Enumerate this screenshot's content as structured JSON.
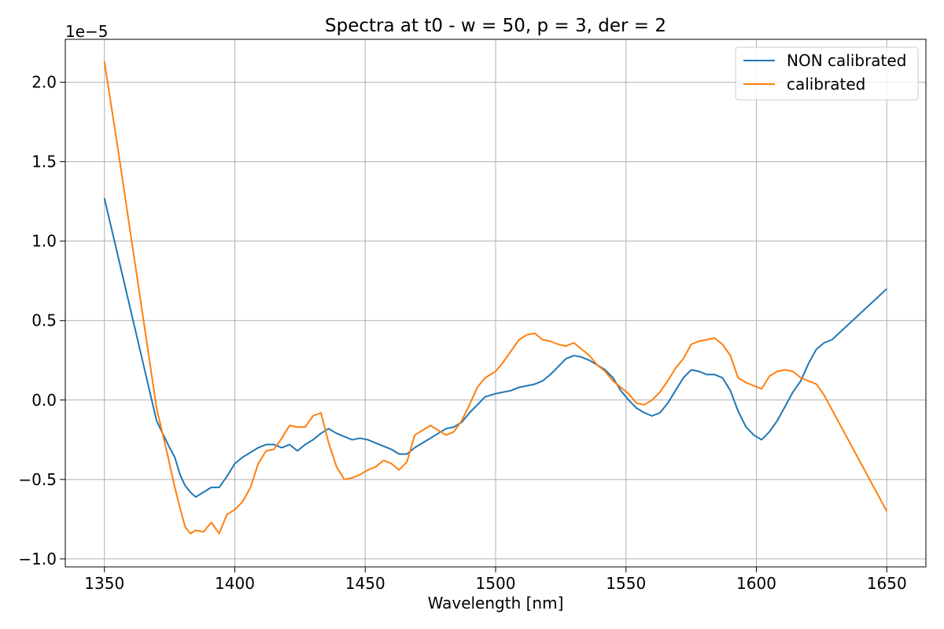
{
  "chart_data": {
    "type": "line",
    "title": "Spectra at t0 - w = 50, p = 3, der = 2",
    "xlabel": "Wavelength [nm]",
    "ylabel": "",
    "y_offset_label": "1e−5",
    "xlim": [
      1335,
      1665
    ],
    "ylim": [
      -1.05,
      2.27
    ],
    "x_ticks": [
      1350,
      1400,
      1450,
      1500,
      1550,
      1600,
      1650
    ],
    "x_tick_labels": [
      "1350",
      "1400",
      "1450",
      "1500",
      "1550",
      "1600",
      "1650"
    ],
    "y_ticks": [
      -1.0,
      -0.5,
      0.0,
      0.5,
      1.0,
      1.5,
      2.0
    ],
    "y_tick_labels": [
      "−1.0",
      "−0.5",
      "0.0",
      "0.5",
      "1.0",
      "1.5",
      "2.0"
    ],
    "grid": true,
    "legend_position": "top-right",
    "series": [
      {
        "name": "NON calibrated",
        "color": "#1f77b4",
        "points": [
          [
            1350,
            1.27
          ],
          [
            1355,
            0.92
          ],
          [
            1360,
            0.57
          ],
          [
            1365,
            0.22
          ],
          [
            1370,
            -0.13
          ],
          [
            1375,
            -0.3
          ],
          [
            1377,
            -0.36
          ],
          [
            1379,
            -0.47
          ],
          [
            1381,
            -0.54
          ],
          [
            1383,
            -0.58
          ],
          [
            1385,
            -0.61
          ],
          [
            1388,
            -0.58
          ],
          [
            1391,
            -0.55
          ],
          [
            1394,
            -0.55
          ],
          [
            1397,
            -0.48
          ],
          [
            1400,
            -0.4
          ],
          [
            1403,
            -0.36
          ],
          [
            1406,
            -0.33
          ],
          [
            1409,
            -0.3
          ],
          [
            1412,
            -0.28
          ],
          [
            1415,
            -0.28
          ],
          [
            1418,
            -0.3
          ],
          [
            1421,
            -0.28
          ],
          [
            1424,
            -0.32
          ],
          [
            1427,
            -0.28
          ],
          [
            1430,
            -0.25
          ],
          [
            1433,
            -0.21
          ],
          [
            1436,
            -0.18
          ],
          [
            1439,
            -0.21
          ],
          [
            1442,
            -0.23
          ],
          [
            1445,
            -0.25
          ],
          [
            1448,
            -0.24
          ],
          [
            1451,
            -0.25
          ],
          [
            1454,
            -0.27
          ],
          [
            1457,
            -0.29
          ],
          [
            1460,
            -0.31
          ],
          [
            1463,
            -0.34
          ],
          [
            1466,
            -0.34
          ],
          [
            1469,
            -0.3
          ],
          [
            1472,
            -0.27
          ],
          [
            1475,
            -0.24
          ],
          [
            1478,
            -0.21
          ],
          [
            1481,
            -0.18
          ],
          [
            1484,
            -0.17
          ],
          [
            1487,
            -0.14
          ],
          [
            1490,
            -0.08
          ],
          [
            1493,
            -0.03
          ],
          [
            1496,
            0.02
          ],
          [
            1500,
            0.04
          ],
          [
            1503,
            0.05
          ],
          [
            1506,
            0.06
          ],
          [
            1509,
            0.08
          ],
          [
            1512,
            0.09
          ],
          [
            1515,
            0.1
          ],
          [
            1518,
            0.12
          ],
          [
            1521,
            0.16
          ],
          [
            1524,
            0.21
          ],
          [
            1527,
            0.26
          ],
          [
            1530,
            0.28
          ],
          [
            1533,
            0.27
          ],
          [
            1536,
            0.25
          ],
          [
            1539,
            0.22
          ],
          [
            1542,
            0.19
          ],
          [
            1545,
            0.14
          ],
          [
            1548,
            0.06
          ],
          [
            1551,
            0.0
          ],
          [
            1554,
            -0.05
          ],
          [
            1557,
            -0.08
          ],
          [
            1560,
            -0.1
          ],
          [
            1563,
            -0.08
          ],
          [
            1566,
            -0.02
          ],
          [
            1569,
            0.06
          ],
          [
            1572,
            0.14
          ],
          [
            1575,
            0.19
          ],
          [
            1578,
            0.18
          ],
          [
            1581,
            0.16
          ],
          [
            1584,
            0.16
          ],
          [
            1587,
            0.14
          ],
          [
            1590,
            0.06
          ],
          [
            1593,
            -0.07
          ],
          [
            1596,
            -0.17
          ],
          [
            1599,
            -0.22
          ],
          [
            1602,
            -0.25
          ],
          [
            1605,
            -0.2
          ],
          [
            1608,
            -0.13
          ],
          [
            1611,
            -0.04
          ],
          [
            1614,
            0.05
          ],
          [
            1617,
            0.12
          ],
          [
            1620,
            0.23
          ],
          [
            1623,
            0.32
          ],
          [
            1626,
            0.36
          ],
          [
            1629,
            0.38
          ],
          [
            1650,
            0.7
          ]
        ]
      },
      {
        "name": "calibrated",
        "color": "#ff7f0e",
        "points": [
          [
            1350,
            2.13
          ],
          [
            1355,
            1.6
          ],
          [
            1360,
            1.05
          ],
          [
            1365,
            0.5
          ],
          [
            1370,
            -0.05
          ],
          [
            1374,
            -0.33
          ],
          [
            1377,
            -0.55
          ],
          [
            1379,
            -0.68
          ],
          [
            1381,
            -0.8
          ],
          [
            1383,
            -0.84
          ],
          [
            1385,
            -0.82
          ],
          [
            1388,
            -0.83
          ],
          [
            1391,
            -0.77
          ],
          [
            1394,
            -0.84
          ],
          [
            1397,
            -0.72
          ],
          [
            1400,
            -0.69
          ],
          [
            1403,
            -0.64
          ],
          [
            1406,
            -0.55
          ],
          [
            1409,
            -0.4
          ],
          [
            1412,
            -0.32
          ],
          [
            1415,
            -0.31
          ],
          [
            1418,
            -0.24
          ],
          [
            1421,
            -0.16
          ],
          [
            1424,
            -0.17
          ],
          [
            1427,
            -0.17
          ],
          [
            1430,
            -0.1
          ],
          [
            1433,
            -0.08
          ],
          [
            1436,
            -0.27
          ],
          [
            1439,
            -0.42
          ],
          [
            1442,
            -0.5
          ],
          [
            1445,
            -0.49
          ],
          [
            1448,
            -0.47
          ],
          [
            1451,
            -0.44
          ],
          [
            1454,
            -0.42
          ],
          [
            1457,
            -0.38
          ],
          [
            1460,
            -0.4
          ],
          [
            1463,
            -0.44
          ],
          [
            1466,
            -0.39
          ],
          [
            1469,
            -0.22
          ],
          [
            1472,
            -0.19
          ],
          [
            1475,
            -0.16
          ],
          [
            1478,
            -0.19
          ],
          [
            1481,
            -0.22
          ],
          [
            1484,
            -0.2
          ],
          [
            1487,
            -0.13
          ],
          [
            1490,
            -0.03
          ],
          [
            1493,
            0.08
          ],
          [
            1496,
            0.14
          ],
          [
            1500,
            0.18
          ],
          [
            1503,
            0.24
          ],
          [
            1506,
            0.31
          ],
          [
            1509,
            0.38
          ],
          [
            1512,
            0.41
          ],
          [
            1515,
            0.42
          ],
          [
            1518,
            0.38
          ],
          [
            1521,
            0.37
          ],
          [
            1524,
            0.35
          ],
          [
            1527,
            0.34
          ],
          [
            1530,
            0.36
          ],
          [
            1533,
            0.32
          ],
          [
            1536,
            0.28
          ],
          [
            1539,
            0.22
          ],
          [
            1542,
            0.18
          ],
          [
            1545,
            0.12
          ],
          [
            1548,
            0.08
          ],
          [
            1551,
            0.04
          ],
          [
            1554,
            -0.02
          ],
          [
            1557,
            -0.03
          ],
          [
            1560,
            0.0
          ],
          [
            1563,
            0.05
          ],
          [
            1566,
            0.12
          ],
          [
            1569,
            0.2
          ],
          [
            1572,
            0.26
          ],
          [
            1575,
            0.35
          ],
          [
            1578,
            0.37
          ],
          [
            1581,
            0.38
          ],
          [
            1584,
            0.39
          ],
          [
            1587,
            0.35
          ],
          [
            1590,
            0.28
          ],
          [
            1593,
            0.14
          ],
          [
            1596,
            0.11
          ],
          [
            1599,
            0.09
          ],
          [
            1602,
            0.07
          ],
          [
            1605,
            0.15
          ],
          [
            1608,
            0.18
          ],
          [
            1611,
            0.19
          ],
          [
            1614,
            0.18
          ],
          [
            1617,
            0.14
          ],
          [
            1620,
            0.12
          ],
          [
            1623,
            0.1
          ],
          [
            1626,
            0.03
          ],
          [
            1650,
            -0.7
          ]
        ]
      }
    ]
  }
}
